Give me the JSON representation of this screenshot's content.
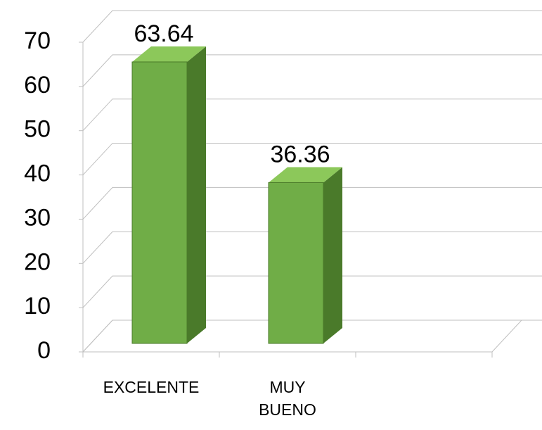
{
  "chart_data": {
    "type": "bar3d",
    "categories": [
      "EXCELENTE",
      "MUY BUENO",
      null
    ],
    "values": [
      63.64,
      36.36,
      null
    ],
    "value_labels": [
      "63.64",
      "36.36",
      null
    ],
    "color": "#70ad47",
    "ylim": [
      0,
      70
    ],
    "yticks": [
      0,
      10,
      20,
      30,
      40,
      50,
      60,
      70
    ],
    "grid": true
  }
}
